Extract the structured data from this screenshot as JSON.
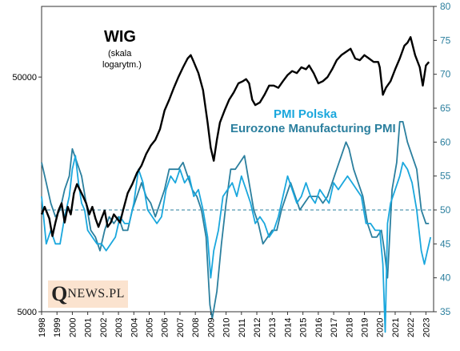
{
  "chart_data": {
    "type": "line",
    "annotations": {
      "wig_title": "WIG",
      "wig_note_line1": "(skala",
      "wig_note_line2": "logarytm.)",
      "pmi_pl_label": "PMI Polska",
      "pmi_ez_label": "Eurozone Manufacturing PMI"
    },
    "watermark": {
      "first_letter": "Q",
      "rest": "NEWS.PL"
    },
    "x_ticks": [
      "1998",
      "1999",
      "2000",
      "2001",
      "2002",
      "2003",
      "2004",
      "2005",
      "2006",
      "2007",
      "2008",
      "2009",
      "2010",
      "2011",
      "2012",
      "2013",
      "2014",
      "2015",
      "2016",
      "2017",
      "2018",
      "2019",
      "2020",
      "2021",
      "2022",
      "2023"
    ],
    "left_axis": {
      "scale": "log",
      "range": [
        5000,
        100000
      ],
      "tick_labels": [
        "5000",
        "50000"
      ],
      "tick_values": [
        5000,
        50000
      ]
    },
    "right_axis": {
      "range": [
        35,
        80
      ],
      "tick_values": [
        35,
        40,
        45,
        50,
        55,
        60,
        65,
        70,
        75,
        80
      ],
      "tick_labels": [
        "35",
        "40",
        "45",
        "50",
        "55",
        "60",
        "65",
        "70",
        "75",
        "80"
      ]
    },
    "reference_line": {
      "axis": "right",
      "value": 50
    },
    "colors": {
      "wig": "#000000",
      "pmi_pl": "#1aa7dd",
      "pmi_ez": "#2b7f9e",
      "right_axis_text": "#2b7f9e",
      "ref_line": "#2b7f9e"
    },
    "series": [
      {
        "name": "WIG",
        "axis": "left",
        "x": [
          1998.0,
          1998.2,
          1998.5,
          1998.7,
          1998.9,
          1999.1,
          1999.3,
          1999.5,
          1999.7,
          1999.9,
          2000.1,
          2000.3,
          2000.5,
          2000.7,
          2000.9,
          2001.1,
          2001.3,
          2001.5,
          2001.7,
          2001.9,
          2002.1,
          2002.3,
          2002.5,
          2002.7,
          2002.9,
          2003.1,
          2003.3,
          2003.6,
          2003.9,
          2004.2,
          2004.5,
          2004.8,
          2005.1,
          2005.4,
          2005.7,
          2006.0,
          2006.3,
          2006.6,
          2006.9,
          2007.2,
          2007.5,
          2007.7,
          2007.9,
          2008.2,
          2008.5,
          2008.8,
          2009.0,
          2009.2,
          2009.4,
          2009.6,
          2009.9,
          2010.2,
          2010.5,
          2010.8,
          2011.1,
          2011.3,
          2011.5,
          2011.7,
          2011.9,
          2012.2,
          2012.5,
          2012.8,
          2013.1,
          2013.4,
          2013.7,
          2014.0,
          2014.3,
          2014.6,
          2014.9,
          2015.2,
          2015.4,
          2015.7,
          2016.0,
          2016.3,
          2016.6,
          2016.9,
          2017.2,
          2017.5,
          2017.8,
          2018.1,
          2018.4,
          2018.7,
          2019.0,
          2019.3,
          2019.6,
          2019.9,
          2020.0,
          2020.2,
          2020.4,
          2020.7,
          2021.0,
          2021.3,
          2021.6,
          2021.8,
          2022.0,
          2022.3,
          2022.6,
          2022.8,
          2023.0,
          2023.2
        ],
        "values": [
          13000,
          14000,
          12500,
          10500,
          12000,
          13500,
          14500,
          12000,
          14000,
          13000,
          16000,
          17500,
          16500,
          15500,
          14500,
          13000,
          14000,
          12500,
          11500,
          12500,
          13500,
          11500,
          12000,
          13000,
          12500,
          12000,
          13500,
          16000,
          17500,
          19500,
          21000,
          23500,
          25500,
          27000,
          30000,
          36000,
          40000,
          45000,
          50000,
          55000,
          60000,
          62000,
          58000,
          52000,
          44000,
          32000,
          25000,
          22000,
          27000,
          32000,
          36000,
          40000,
          43000,
          47000,
          48000,
          49000,
          47000,
          40000,
          38000,
          39000,
          42000,
          46000,
          46000,
          45000,
          48000,
          51000,
          53000,
          52000,
          55000,
          54000,
          56000,
          52000,
          47000,
          48000,
          50000,
          54000,
          59000,
          62000,
          64000,
          66000,
          60000,
          59000,
          62000,
          60000,
          58000,
          58000,
          55000,
          42000,
          45000,
          48000,
          54000,
          60000,
          68000,
          70000,
          74000,
          62000,
          55000,
          46000,
          56000,
          58000
        ]
      },
      {
        "name": "PMI Polska",
        "axis": "right",
        "x": [
          1998.0,
          1998.3,
          1998.6,
          1998.9,
          1999.2,
          1999.5,
          1999.8,
          2000.0,
          2000.2,
          2000.4,
          2000.6,
          2000.8,
          2001.0,
          2001.3,
          2001.6,
          2001.9,
          2002.2,
          2002.5,
          2002.8,
          2003.1,
          2003.4,
          2003.7,
          2004.0,
          2004.3,
          2004.6,
          2004.9,
          2005.2,
          2005.5,
          2005.8,
          2006.1,
          2006.4,
          2006.7,
          2007.0,
          2007.3,
          2007.6,
          2007.9,
          2008.2,
          2008.5,
          2008.8,
          2009.0,
          2009.2,
          2009.5,
          2009.8,
          2010.1,
          2010.4,
          2010.7,
          2011.0,
          2011.3,
          2011.6,
          2011.9,
          2012.2,
          2012.5,
          2012.8,
          2013.1,
          2013.4,
          2013.7,
          2014.0,
          2014.3,
          2014.6,
          2014.9,
          2015.2,
          2015.5,
          2015.8,
          2016.1,
          2016.4,
          2016.7,
          2017.0,
          2017.3,
          2017.6,
          2017.9,
          2018.2,
          2018.5,
          2018.8,
          2019.1,
          2019.4,
          2019.7,
          2020.0,
          2020.2,
          2020.35,
          2020.5,
          2020.7,
          2021.0,
          2021.3,
          2021.5,
          2021.8,
          2022.1,
          2022.4,
          2022.7,
          2022.9,
          2023.1,
          2023.3
        ],
        "values": [
          52,
          45,
          47,
          45,
          45,
          49,
          52,
          56,
          58,
          54,
          51,
          50,
          47,
          46,
          45,
          45,
          44,
          45,
          46,
          49,
          48,
          48,
          51,
          56,
          54,
          50,
          49,
          48,
          49,
          53,
          55,
          54,
          56,
          54,
          55,
          52,
          53,
          50,
          46,
          40,
          44,
          47,
          52,
          53,
          54,
          52,
          55,
          53,
          51,
          48,
          49,
          48,
          46,
          47,
          49,
          52,
          55,
          53,
          51,
          52,
          54,
          52,
          51,
          53,
          52,
          51,
          54,
          53,
          54,
          55,
          54,
          53,
          52,
          48,
          48,
          47,
          47,
          42,
          32,
          48,
          51,
          53,
          55,
          57,
          56,
          54,
          50,
          44,
          42,
          44,
          46
        ]
      },
      {
        "name": "Eurozone Manufacturing PMI",
        "axis": "right",
        "x": [
          1998.0,
          1998.3,
          1998.6,
          1998.9,
          1999.2,
          1999.5,
          1999.8,
          2000.0,
          2000.3,
          2000.6,
          2000.9,
          2001.2,
          2001.5,
          2001.8,
          2002.1,
          2002.4,
          2002.7,
          2003.0,
          2003.3,
          2003.6,
          2003.9,
          2004.2,
          2004.5,
          2004.8,
          2005.1,
          2005.4,
          2005.7,
          2006.0,
          2006.3,
          2006.6,
          2006.9,
          2007.2,
          2007.5,
          2007.8,
          2008.1,
          2008.4,
          2008.7,
          2008.95,
          2009.1,
          2009.4,
          2009.7,
          2010.0,
          2010.3,
          2010.6,
          2010.9,
          2011.2,
          2011.5,
          2011.8,
          2012.1,
          2012.4,
          2012.7,
          2013.0,
          2013.3,
          2013.6,
          2013.9,
          2014.2,
          2014.5,
          2014.8,
          2015.1,
          2015.4,
          2015.7,
          2016.0,
          2016.3,
          2016.6,
          2016.9,
          2017.2,
          2017.5,
          2017.8,
          2018.0,
          2018.3,
          2018.6,
          2018.9,
          2019.2,
          2019.5,
          2019.8,
          2020.1,
          2020.3,
          2020.5,
          2020.8,
          2021.1,
          2021.3,
          2021.5,
          2021.8,
          2022.1,
          2022.4,
          2022.7,
          2023.0,
          2023.2
        ],
        "values": [
          57,
          54,
          51,
          49,
          50,
          53,
          55,
          59,
          57,
          55,
          51,
          47,
          46,
          44,
          47,
          49,
          48,
          49,
          47,
          47,
          50,
          52,
          54,
          52,
          51,
          49,
          51,
          53,
          56,
          56,
          56,
          57,
          55,
          53,
          52,
          50,
          46,
          36,
          34,
          38,
          45,
          51,
          56,
          56,
          57,
          58,
          54,
          50,
          48,
          45,
          46,
          47,
          47,
          50,
          52,
          54,
          52,
          50,
          51,
          52,
          52,
          52,
          51,
          52,
          54,
          56,
          58,
          60,
          59,
          56,
          54,
          52,
          48,
          46,
          46,
          47,
          44,
          40,
          53,
          57,
          63,
          63,
          60,
          58,
          56,
          50,
          48,
          48
        ]
      }
    ]
  }
}
